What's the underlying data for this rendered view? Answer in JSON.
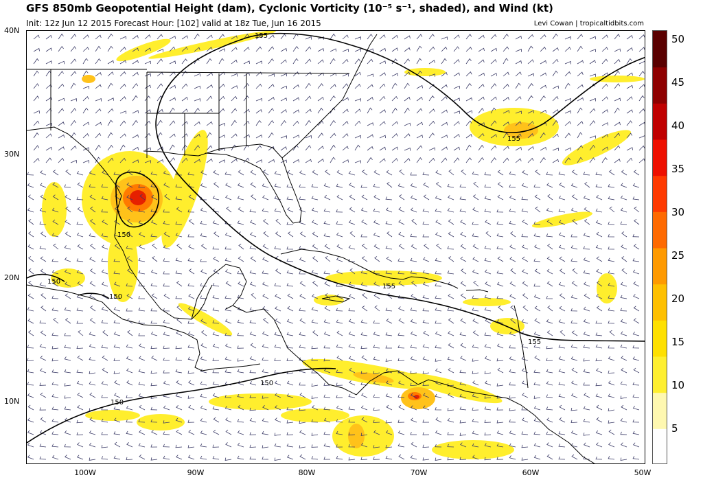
{
  "header": {
    "title": "GFS 850mb Geopotential Height (dam), Cyclonic Vorticity (10⁻⁵ s⁻¹, shaded), and Wind (kt)",
    "subtitle": "Init: 12z Jun 12 2015   Forecast Hour: [102]   valid at 18z Tue, Jun 16 2015",
    "credit": "Levi Cowan | tropicaltidbits.com"
  },
  "axes": {
    "lat_labels": [
      "40N",
      "30N",
      "20N",
      "10N"
    ],
    "lon_labels": [
      "100W",
      "90W",
      "80W",
      "70W",
      "60W",
      "50W"
    ]
  },
  "colorbar": {
    "labels": [
      "50",
      "45",
      "40",
      "35",
      "30",
      "25",
      "20",
      "15",
      "10",
      "5"
    ],
    "colors": [
      "#ffffff",
      "#fff8b0",
      "#ffef30",
      "#ffe000",
      "#ffc000",
      "#ff9a00",
      "#ff6a00",
      "#ff3a00",
      "#ee1000",
      "#c00000",
      "#8e0000",
      "#5a0000"
    ]
  },
  "contours": {
    "height_labels": [
      "155",
      "155",
      "150",
      "150",
      "150",
      "155",
      "150",
      "155",
      "150"
    ]
  },
  "colors": {
    "vort_low": "#ffee22",
    "vort_mid": "#ffc21a",
    "vort_high": "#ff7a00",
    "vort_core": "#e62000",
    "coast": "#000000",
    "barb": "#3a3a66"
  }
}
